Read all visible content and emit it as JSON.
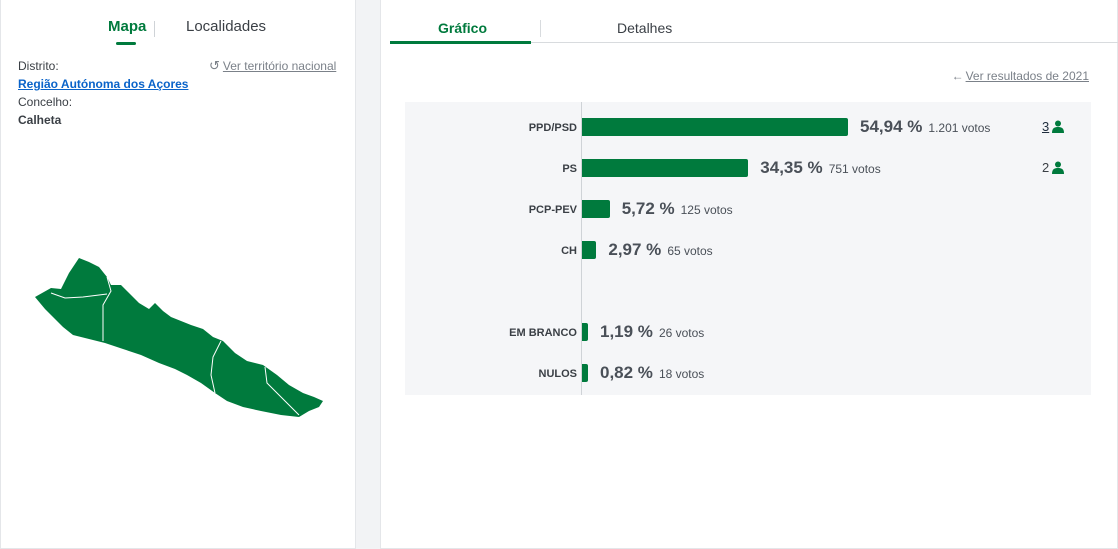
{
  "left": {
    "tabs": [
      {
        "label": "Mapa",
        "active": true
      },
      {
        "label": "Localidades",
        "active": false
      }
    ],
    "distrito_label": "Distrito:",
    "distrito_value": "Região Autónoma dos Açores",
    "concelho_label": "Concelho:",
    "concelho_value": "Calheta",
    "ver_territorio": "Ver território nacional",
    "map_color": "#007a3d"
  },
  "right": {
    "tabs": [
      {
        "label": "Gráfico",
        "active": true
      },
      {
        "label": "Detalhes",
        "active": false
      }
    ],
    "ver_resultados": "Ver resultados de 2021",
    "accent_color": "#007a3d"
  },
  "chart_data": {
    "type": "bar",
    "orientation": "horizontal",
    "categories": [
      "PPD/PSD",
      "PS",
      "PCP-PEV",
      "CH",
      "EM BRANCO",
      "NULOS"
    ],
    "values": [
      54.94,
      34.35,
      5.72,
      2.97,
      1.19,
      0.82
    ],
    "value_labels": [
      "54,94 %",
      "34,35 %",
      "5,72 %",
      "2,97 %",
      "1,19 %",
      "0,82 %"
    ],
    "votes": [
      "1.201 votos",
      "751 votos",
      "125 votos",
      "65 votos",
      "26 votos",
      "18 votos"
    ],
    "seats": [
      "3",
      "2",
      "",
      "",
      "",
      ""
    ],
    "unit": "%"
  }
}
